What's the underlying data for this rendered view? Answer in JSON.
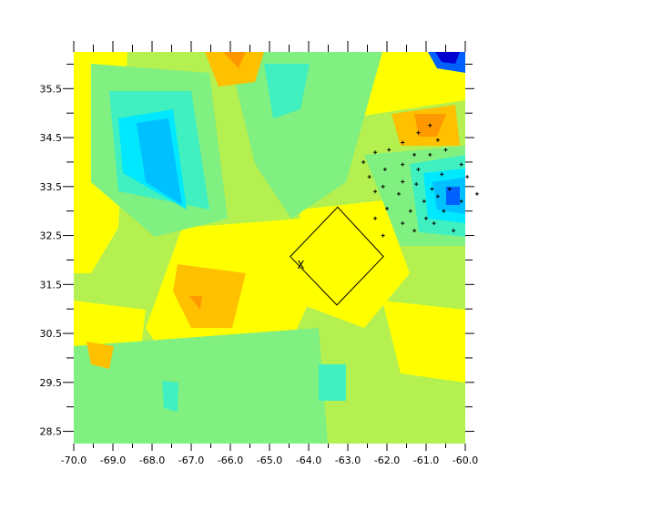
{
  "chart_data": {
    "type": "contour",
    "xlim": [
      -70,
      -60
    ],
    "ylim": [
      28.25,
      36.25
    ],
    "xticks": [
      {
        "value": -70,
        "label": "-70.0"
      },
      {
        "value": -69,
        "label": "-69.0"
      },
      {
        "value": -68,
        "label": "-68.0"
      },
      {
        "value": -67,
        "label": "-67.0"
      },
      {
        "value": -66,
        "label": "-66.0"
      },
      {
        "value": -65,
        "label": "-65.0"
      },
      {
        "value": -64,
        "label": "-64.0"
      },
      {
        "value": -63,
        "label": "-63.0"
      },
      {
        "value": -62,
        "label": "-62.0"
      },
      {
        "value": -61,
        "label": "-61.0"
      },
      {
        "value": -60,
        "label": "-60.0"
      }
    ],
    "xminorticks": [
      -69.5,
      -68.5,
      -67.5,
      -66.5,
      -65.5,
      -64.5,
      -63.5,
      -62.5,
      -61.5,
      -60.5
    ],
    "yticks": [
      28.5,
      29.5,
      30.5,
      31.5,
      32.5,
      33.5,
      34.5,
      35.5
    ],
    "yminorticks": [
      29,
      30,
      31,
      32,
      33,
      34,
      35,
      36
    ],
    "points": {
      "x": [
        -60.9,
        -61.2,
        -60.7,
        -61.6,
        -61.95,
        -60.5,
        -62.3,
        -60.9,
        -61.3,
        -62.6,
        -61.6,
        -60.1,
        -62.05,
        -61.2,
        -62.45,
        -60.6,
        -61.6,
        -59.95,
        -62.1,
        -61.25,
        -60.85,
        -62.3,
        -60.4,
        -61.7,
        -60.7,
        -59.7,
        -61.05,
        -60.1,
        -62.0,
        -61.4,
        -60.55,
        -62.3,
        -61.0,
        -60.8,
        -61.6,
        -61.3,
        -62.1,
        -60.3
      ],
      "y": [
        34.75,
        34.6,
        34.45,
        34.4,
        34.25,
        34.25,
        34.2,
        34.15,
        34.15,
        34.0,
        33.95,
        33.95,
        33.85,
        33.85,
        33.7,
        33.75,
        33.6,
        33.7,
        33.5,
        33.55,
        33.45,
        33.4,
        33.45,
        33.35,
        33.3,
        33.35,
        33.2,
        33.2,
        33.05,
        33.0,
        33.0,
        32.85,
        32.85,
        32.75,
        32.75,
        32.6,
        32.5,
        32.6
      ]
    },
    "box": {
      "x": [
        -63.26,
        -62.09,
        -63.28,
        -64.47
      ],
      "y": [
        33.08,
        32.07,
        31.08,
        32.07
      ]
    },
    "marker": {
      "label": "X",
      "x": -64.2,
      "y": 31.9
    }
  }
}
